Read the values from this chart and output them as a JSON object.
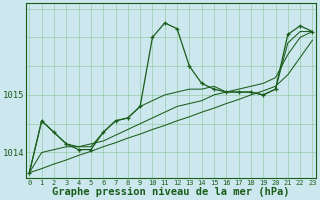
{
  "background_color": "#cce8ee",
  "line_color": "#1a5c1a",
  "grid_color": "#99ccaa",
  "xlabel": "Graphe pression niveau de la mer (hPa)",
  "xlabel_fontsize": 7.5,
  "ylabel_fontsize": 6.5,
  "yticks": [
    1014,
    1015
  ],
  "ylim": [
    1013.55,
    1016.6
  ],
  "xlim": [
    -0.3,
    23.3
  ],
  "xticks": [
    0,
    1,
    2,
    3,
    4,
    5,
    6,
    7,
    8,
    9,
    10,
    11,
    12,
    13,
    14,
    15,
    16,
    17,
    18,
    19,
    20,
    21,
    22,
    23
  ],
  "main_curve": [
    1013.65,
    1014.55,
    1014.35,
    1014.15,
    1014.05,
    1014.05,
    1014.35,
    1014.55,
    1014.6,
    1014.8,
    1016.0,
    1016.25,
    1016.15,
    1015.5,
    1015.2,
    1015.1,
    1015.05,
    1015.05,
    1015.05,
    1015.0,
    1015.1,
    1016.05,
    1016.2,
    1016.1
  ],
  "trend1": [
    1013.65,
    1014.55,
    1014.35,
    1014.15,
    1014.1,
    1014.1,
    1014.35,
    1014.55,
    1014.6,
    1014.8,
    1014.9,
    1015.0,
    1015.05,
    1015.1,
    1015.1,
    1015.15,
    1015.05,
    1015.05,
    1015.05,
    1015.0,
    1015.1,
    1015.9,
    1016.1,
    1016.1
  ],
  "trend2": [
    1013.65,
    1014.0,
    1014.05,
    1014.1,
    1014.1,
    1014.15,
    1014.2,
    1014.3,
    1014.4,
    1014.5,
    1014.6,
    1014.7,
    1014.8,
    1014.85,
    1014.9,
    1015.0,
    1015.05,
    1015.1,
    1015.15,
    1015.2,
    1015.3,
    1015.7,
    1016.0,
    1016.1
  ],
  "trend3": [
    1013.65,
    1013.72,
    1013.8,
    1013.87,
    1013.95,
    1014.02,
    1014.1,
    1014.17,
    1014.25,
    1014.32,
    1014.4,
    1014.47,
    1014.55,
    1014.62,
    1014.7,
    1014.77,
    1014.85,
    1014.92,
    1015.0,
    1015.07,
    1015.15,
    1015.35,
    1015.65,
    1015.95
  ]
}
